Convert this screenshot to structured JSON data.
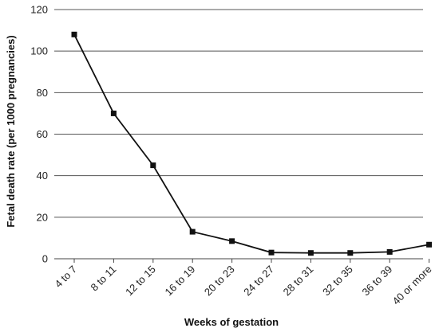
{
  "chart_data": {
    "type": "line",
    "title": "",
    "xlabel": "Weeks of gestation",
    "ylabel": "Fetal death rate (per 1000  pregnancies)",
    "categories": [
      "4 to 7",
      "8 to 11",
      "12 to 15",
      "16 to 19",
      "20 to 23",
      "24 to 27",
      "28 to 31",
      "32 to 35",
      "36 to 39",
      "40 or more"
    ],
    "series": [
      {
        "values": [
          108,
          70,
          45,
          13,
          8.5,
          3,
          2.8,
          2.8,
          3.3,
          6.8
        ]
      }
    ],
    "ylim": [
      0,
      120
    ],
    "yticks": [
      0,
      20,
      40,
      60,
      80,
      100,
      120
    ],
    "grid": true,
    "legend": "none",
    "colors": {
      "line": "#111111",
      "marker": "#111111",
      "grid": "#555555",
      "axis": "#444444"
    }
  }
}
